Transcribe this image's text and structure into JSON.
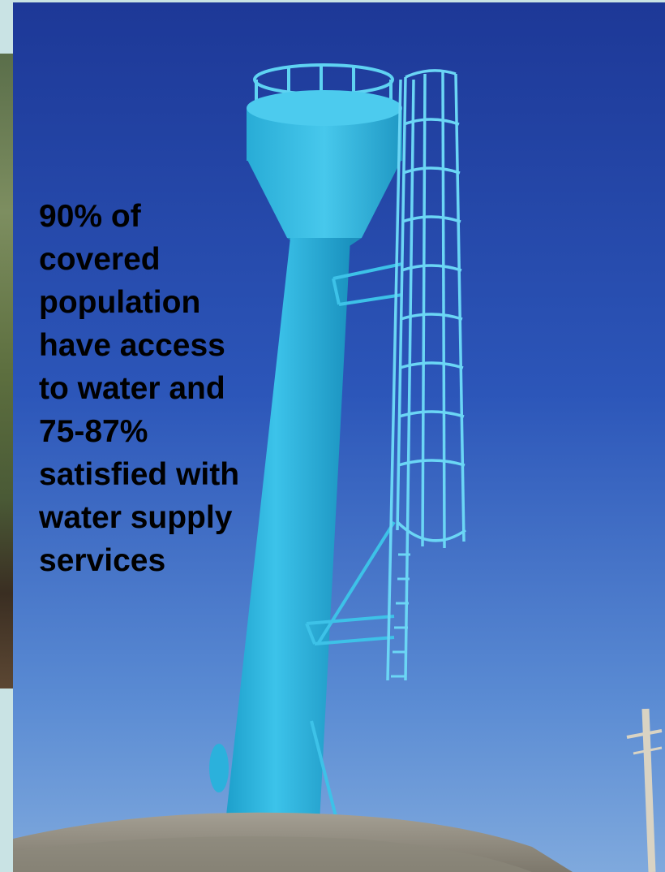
{
  "slide": {
    "caption": "90% of\ncovered\npopulation\nhave access\nto water and\n75-87%\nsatisfied with\nwater supply\nservices"
  },
  "icons": {
    "photo": "water-tower-photo",
    "backdrop": "vegetation-photo-strip"
  },
  "colors": {
    "slide_background": "#c9e3e4",
    "sky_top": "#1f3a9a",
    "sky_bottom": "#6f9ed8",
    "tower": "#2cb4dd",
    "caption_text": "#000000"
  }
}
